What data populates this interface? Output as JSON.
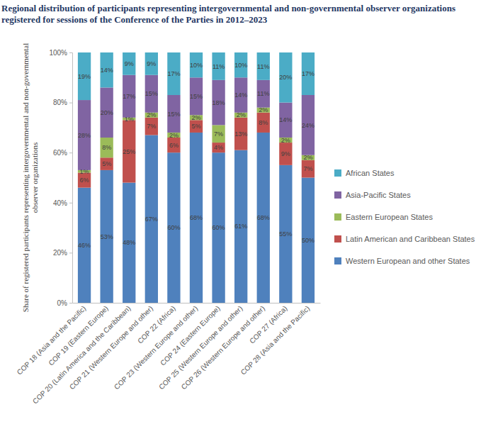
{
  "chart_data": {
    "type": "bar",
    "stacked": true,
    "data_labels": true,
    "grid": false,
    "legend": "right",
    "title": "Regional distribution of participants representing intergovernmental and non-governmental observer organizations registered for sessions of the Conference of the Parties in 2012–2023",
    "ylabel": "Share of registered participants representing intergovernmental and non-governmental observer organizations",
    "categories": [
      "COP 18 (Asia and the Pacific)",
      "COP 19 (Eastern Europe)",
      "COP 20 (Latin America and the Caribbean)",
      "COP 21 (Western Europe and other)",
      "COP 22 (Africa)",
      "COP 23 (Western Europe and other)",
      "COP 24 (Eastern Europe)",
      "COP 25 (Western Europe and other)",
      "COP 26 (Western Europe and other)",
      "COP 27 (Africa)",
      "COP 28 (Asia and the Pacific)"
    ],
    "ylim": [
      0,
      100
    ],
    "yticks": [
      {
        "value": 0,
        "label": "0%"
      },
      {
        "value": 20,
        "label": "20%"
      },
      {
        "value": 40,
        "label": "40%"
      },
      {
        "value": 60,
        "label": "60%"
      },
      {
        "value": 80,
        "label": "80%"
      },
      {
        "value": 100,
        "label": "100%"
      }
    ],
    "series": [
      {
        "name": "Western European and other States",
        "color": "#4f81bd",
        "values": [
          46,
          53,
          48,
          67,
          60,
          68,
          60,
          61,
          68,
          55,
          50
        ],
        "value_labels": [
          "46%",
          "53%",
          "48%",
          "67%",
          "60%",
          "68%",
          "60%",
          "61%",
          "68%",
          "55%",
          "50%"
        ]
      },
      {
        "name": "Latin American and Caribbean States",
        "color": "#c0504d",
        "values": [
          6,
          5,
          25,
          7,
          6,
          5,
          4,
          13,
          8,
          9,
          7
        ],
        "value_labels": [
          "6%",
          "5%",
          "25%",
          "7%",
          "6%",
          "5%",
          "4%",
          "13%",
          "8%",
          "9%",
          "7%"
        ]
      },
      {
        "name": "Eastern European States",
        "color": "#9bbb59",
        "values": [
          1,
          8,
          1,
          2,
          2,
          2,
          7,
          2,
          2,
          2,
          2
        ],
        "value_labels": [
          "1%",
          "8%",
          "1%",
          "2%",
          "2%",
          "2%",
          "7%",
          "2%",
          "2%",
          "2%",
          "2%"
        ]
      },
      {
        "name": "Asia-Pacific States",
        "color": "#8064a2",
        "values": [
          28,
          20,
          17,
          15,
          15,
          15,
          18,
          14,
          11,
          14,
          24
        ],
        "value_labels": [
          "28%",
          "20%",
          "17%",
          "15%",
          "15%",
          "15%",
          "18%",
          "14%",
          "11%",
          "14%",
          "24%"
        ]
      },
      {
        "name": "African States",
        "color": "#4bacc6",
        "values": [
          19,
          14,
          9,
          9,
          17,
          10,
          11,
          10,
          11,
          20,
          17
        ],
        "value_labels": [
          "19%",
          "14%",
          "9%",
          "9%",
          "17%",
          "10%",
          "11%",
          "10%",
          "11%",
          "20%",
          "17%"
        ]
      }
    ]
  }
}
